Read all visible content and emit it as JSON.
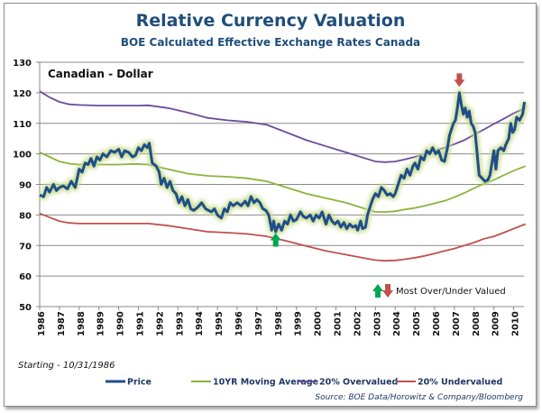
{
  "chart_data": {
    "type": "line",
    "title": "Relative Currency Valuation",
    "subtitle": "BOE Calculated Effective Exchange Rates Canada",
    "series_label": "Canadian - Dollar",
    "xlabel": "",
    "ylabel": "",
    "ylim": [
      50,
      130
    ],
    "xlim": [
      1986,
      2010.6
    ],
    "yticks": [
      50,
      60,
      70,
      80,
      90,
      100,
      110,
      120,
      130
    ],
    "xticks": [
      "1986",
      "1987",
      "1988",
      "1989",
      "1990",
      "1991",
      "1992",
      "1993",
      "1994",
      "1995",
      "1996",
      "1997",
      "1998",
      "1999",
      "2000",
      "2001",
      "2002",
      "2003",
      "2004",
      "2005",
      "2006",
      "2007",
      "2008",
      "2009",
      "2010"
    ],
    "grid": "horizontal",
    "legend_position": "bottom",
    "series": [
      {
        "name": "Price",
        "color": "#1f4e8c",
        "points": [
          [
            1986.0,
            86.5
          ],
          [
            1986.2,
            86
          ],
          [
            1986.35,
            89
          ],
          [
            1986.5,
            87.5
          ],
          [
            1986.7,
            90
          ],
          [
            1986.85,
            88
          ],
          [
            1987.0,
            89
          ],
          [
            1987.2,
            89.5
          ],
          [
            1987.4,
            88.5
          ],
          [
            1987.6,
            91
          ],
          [
            1987.8,
            89
          ],
          [
            1988.0,
            95
          ],
          [
            1988.15,
            94
          ],
          [
            1988.3,
            97
          ],
          [
            1988.45,
            96.5
          ],
          [
            1988.6,
            98.5
          ],
          [
            1988.75,
            96
          ],
          [
            1988.9,
            99
          ],
          [
            1989.05,
            98
          ],
          [
            1989.2,
            100
          ],
          [
            1989.4,
            99
          ],
          [
            1989.6,
            101
          ],
          [
            1989.8,
            100.5
          ],
          [
            1990.0,
            101.5
          ],
          [
            1990.15,
            99
          ],
          [
            1990.3,
            101
          ],
          [
            1990.5,
            100.5
          ],
          [
            1990.7,
            99
          ],
          [
            1990.85,
            99.5
          ],
          [
            1991.0,
            102
          ],
          [
            1991.15,
            101
          ],
          [
            1991.3,
            103
          ],
          [
            1991.45,
            102
          ],
          [
            1991.55,
            103.5
          ],
          [
            1991.7,
            97
          ],
          [
            1991.9,
            96
          ],
          [
            1992.05,
            94
          ],
          [
            1992.15,
            90
          ],
          [
            1992.3,
            92
          ],
          [
            1992.45,
            89
          ],
          [
            1992.6,
            91
          ],
          [
            1992.75,
            88
          ],
          [
            1992.9,
            87
          ],
          [
            1993.05,
            84
          ],
          [
            1993.2,
            86
          ],
          [
            1993.35,
            83
          ],
          [
            1993.5,
            85
          ],
          [
            1993.65,
            82
          ],
          [
            1993.8,
            81.5
          ],
          [
            1994.0,
            82.5
          ],
          [
            1994.2,
            84
          ],
          [
            1994.4,
            82
          ],
          [
            1994.55,
            81.5
          ],
          [
            1994.7,
            81
          ],
          [
            1994.85,
            82
          ],
          [
            1995.0,
            80
          ],
          [
            1995.2,
            79
          ],
          [
            1995.35,
            82
          ],
          [
            1995.5,
            81
          ],
          [
            1995.65,
            84
          ],
          [
            1995.8,
            83
          ],
          [
            1996.0,
            84
          ],
          [
            1996.2,
            83
          ],
          [
            1996.4,
            84.5
          ],
          [
            1996.55,
            83
          ],
          [
            1996.7,
            86
          ],
          [
            1996.85,
            84
          ],
          [
            1997.0,
            85
          ],
          [
            1997.15,
            84
          ],
          [
            1997.3,
            82
          ],
          [
            1997.45,
            81.5
          ],
          [
            1997.6,
            80
          ],
          [
            1997.75,
            75
          ],
          [
            1997.85,
            78
          ],
          [
            1997.95,
            74.5
          ],
          [
            1998.1,
            77
          ],
          [
            1998.25,
            75
          ],
          [
            1998.4,
            78
          ],
          [
            1998.55,
            77
          ],
          [
            1998.7,
            80
          ],
          [
            1998.85,
            78
          ],
          [
            1999.0,
            78.5
          ],
          [
            1999.2,
            81
          ],
          [
            1999.35,
            79.5
          ],
          [
            1999.5,
            79
          ],
          [
            1999.7,
            80
          ],
          [
            1999.85,
            78
          ],
          [
            2000.0,
            80
          ],
          [
            2000.15,
            79
          ],
          [
            2000.3,
            81
          ],
          [
            2000.5,
            77
          ],
          [
            2000.65,
            80
          ],
          [
            2000.8,
            78
          ],
          [
            2000.95,
            77
          ],
          [
            2001.1,
            78
          ],
          [
            2001.25,
            76
          ],
          [
            2001.4,
            77.5
          ],
          [
            2001.55,
            75.5
          ],
          [
            2001.7,
            77
          ],
          [
            2001.85,
            76
          ],
          [
            2002.0,
            76.5
          ],
          [
            2002.1,
            75
          ],
          [
            2002.25,
            78
          ],
          [
            2002.35,
            75.5
          ],
          [
            2002.5,
            76
          ],
          [
            2002.6,
            80
          ],
          [
            2002.75,
            83
          ],
          [
            2002.85,
            85
          ],
          [
            2003.0,
            87
          ],
          [
            2003.15,
            86
          ],
          [
            2003.3,
            89
          ],
          [
            2003.45,
            88
          ],
          [
            2003.6,
            86.5
          ],
          [
            2003.75,
            87
          ],
          [
            2003.9,
            86
          ],
          [
            2004.0,
            87
          ],
          [
            2004.15,
            90
          ],
          [
            2004.3,
            93
          ],
          [
            2004.45,
            92
          ],
          [
            2004.6,
            95
          ],
          [
            2004.75,
            93
          ],
          [
            2004.9,
            96
          ],
          [
            2005.0,
            97
          ],
          [
            2005.15,
            95
          ],
          [
            2005.3,
            99
          ],
          [
            2005.45,
            98
          ],
          [
            2005.6,
            101
          ],
          [
            2005.75,
            100
          ],
          [
            2005.9,
            102
          ],
          [
            2006.05,
            100
          ],
          [
            2006.2,
            101
          ],
          [
            2006.35,
            98
          ],
          [
            2006.5,
            97.5
          ],
          [
            2006.65,
            102
          ],
          [
            2006.75,
            106
          ],
          [
            2006.85,
            108
          ],
          [
            2006.95,
            110
          ],
          [
            2007.05,
            111
          ],
          [
            2007.15,
            115
          ],
          [
            2007.25,
            120
          ],
          [
            2007.35,
            116
          ],
          [
            2007.45,
            113
          ],
          [
            2007.55,
            115
          ],
          [
            2007.65,
            112
          ],
          [
            2007.75,
            114
          ],
          [
            2007.85,
            110
          ],
          [
            2007.95,
            109
          ],
          [
            2008.05,
            107
          ],
          [
            2008.15,
            100
          ],
          [
            2008.25,
            93
          ],
          [
            2008.4,
            92
          ],
          [
            2008.55,
            91
          ],
          [
            2008.7,
            91.5
          ],
          [
            2008.8,
            93
          ],
          [
            2008.9,
            97
          ],
          [
            2009.0,
            101
          ],
          [
            2009.1,
            95
          ],
          [
            2009.2,
            101
          ],
          [
            2009.35,
            102
          ],
          [
            2009.5,
            101
          ],
          [
            2009.6,
            103
          ],
          [
            2009.75,
            105
          ],
          [
            2009.85,
            110
          ],
          [
            2009.95,
            107
          ],
          [
            2010.05,
            108
          ],
          [
            2010.15,
            112
          ],
          [
            2010.3,
            111
          ],
          [
            2010.45,
            113
          ],
          [
            2010.55,
            117
          ]
        ]
      },
      {
        "name": "10YR Moving Average",
        "color": "#8db33a",
        "points": [
          [
            1986.0,
            100.5
          ],
          [
            1986.5,
            99
          ],
          [
            1987.0,
            97.5
          ],
          [
            1987.5,
            96.8
          ],
          [
            1988.0,
            96.5
          ],
          [
            1989.0,
            96.5
          ],
          [
            1990.0,
            96.5
          ],
          [
            1990.8,
            96.7
          ],
          [
            1991.5,
            96.5
          ],
          [
            1992.5,
            95
          ],
          [
            1993.5,
            93.5
          ],
          [
            1994.5,
            92.8
          ],
          [
            1995.5,
            92.5
          ],
          [
            1996.5,
            92
          ],
          [
            1997.5,
            91
          ],
          [
            1998.5,
            89
          ],
          [
            1999.5,
            87
          ],
          [
            2000.5,
            85.5
          ],
          [
            2001.5,
            84
          ],
          [
            2002.5,
            82
          ],
          [
            2003.0,
            81
          ],
          [
            2003.5,
            81
          ],
          [
            2004.0,
            81.2
          ],
          [
            2004.5,
            81.8
          ],
          [
            2005.0,
            82.3
          ],
          [
            2005.5,
            83
          ],
          [
            2006.0,
            83.8
          ],
          [
            2006.5,
            84.6
          ],
          [
            2007.0,
            85.8
          ],
          [
            2007.5,
            87.2
          ],
          [
            2008.0,
            88.8
          ],
          [
            2008.5,
            90.2
          ],
          [
            2009.0,
            91.5
          ],
          [
            2009.5,
            93
          ],
          [
            2010.0,
            94.5
          ],
          [
            2010.6,
            96
          ]
        ]
      },
      {
        "name": "20% Overvalued",
        "color": "#6b4c9a",
        "points": [
          [
            1986.0,
            120.5
          ],
          [
            1986.5,
            118.5
          ],
          [
            1987.0,
            117
          ],
          [
            1987.5,
            116.2
          ],
          [
            1988.0,
            116
          ],
          [
            1989.0,
            115.8
          ],
          [
            1990.0,
            115.8
          ],
          [
            1991.0,
            115.8
          ],
          [
            1991.5,
            115.9
          ],
          [
            1992.5,
            115
          ],
          [
            1993.5,
            113.5
          ],
          [
            1994.5,
            111.8
          ],
          [
            1995.5,
            111
          ],
          [
            1996.5,
            110.5
          ],
          [
            1997.5,
            109.5
          ],
          [
            1998.5,
            107
          ],
          [
            1999.5,
            104.5
          ],
          [
            2000.5,
            102.5
          ],
          [
            2001.5,
            100.5
          ],
          [
            2002.5,
            98.5
          ],
          [
            2003.0,
            97.5
          ],
          [
            2003.5,
            97.3
          ],
          [
            2004.0,
            97.5
          ],
          [
            2004.5,
            98.2
          ],
          [
            2005.0,
            99
          ],
          [
            2005.5,
            100
          ],
          [
            2006.0,
            101
          ],
          [
            2006.5,
            102
          ],
          [
            2007.0,
            103.2
          ],
          [
            2007.5,
            104.5
          ],
          [
            2008.0,
            106.3
          ],
          [
            2008.5,
            108
          ],
          [
            2009.0,
            109.8
          ],
          [
            2009.5,
            111.5
          ],
          [
            2010.0,
            113.3
          ],
          [
            2010.6,
            115
          ]
        ]
      },
      {
        "name": "20% Undervalued",
        "color": "#c0504d",
        "points": [
          [
            1986.0,
            80.5
          ],
          [
            1986.5,
            79.2
          ],
          [
            1987.0,
            78
          ],
          [
            1987.5,
            77.4
          ],
          [
            1988.0,
            77.2
          ],
          [
            1989.0,
            77.2
          ],
          [
            1990.0,
            77.2
          ],
          [
            1991.0,
            77.2
          ],
          [
            1991.5,
            77.2
          ],
          [
            1992.5,
            76.5
          ],
          [
            1993.5,
            75.5
          ],
          [
            1994.5,
            74.5
          ],
          [
            1995.5,
            74.2
          ],
          [
            1996.5,
            73.8
          ],
          [
            1997.5,
            73
          ],
          [
            1998.5,
            71.5
          ],
          [
            1999.5,
            69.8
          ],
          [
            2000.5,
            68.2
          ],
          [
            2001.5,
            67
          ],
          [
            2002.5,
            65.8
          ],
          [
            2003.0,
            65.2
          ],
          [
            2003.5,
            65
          ],
          [
            2004.0,
            65.1
          ],
          [
            2004.5,
            65.5
          ],
          [
            2005.0,
            66
          ],
          [
            2005.5,
            66.6
          ],
          [
            2006.0,
            67.4
          ],
          [
            2006.5,
            68.2
          ],
          [
            2007.0,
            69
          ],
          [
            2007.5,
            70
          ],
          [
            2008.0,
            71
          ],
          [
            2008.5,
            72.2
          ],
          [
            2009.0,
            73
          ],
          [
            2009.5,
            74.2
          ],
          [
            2010.0,
            75.5
          ],
          [
            2010.6,
            77
          ]
        ]
      }
    ],
    "annotations": [
      {
        "type": "arrow-up",
        "color": "#00a651",
        "x": 1997.95,
        "y": 72,
        "meaning": "Most Undervalued"
      },
      {
        "type": "arrow-down",
        "color": "#c0504d",
        "x": 2007.25,
        "y": 124,
        "meaning": "Most Overvalued"
      }
    ],
    "annotation_legend": "Most Over/Under  Valued",
    "note": "Starting - 10/31/1986",
    "source": "Source: BOE Data/Horowitz & Company/Bloomberg"
  }
}
